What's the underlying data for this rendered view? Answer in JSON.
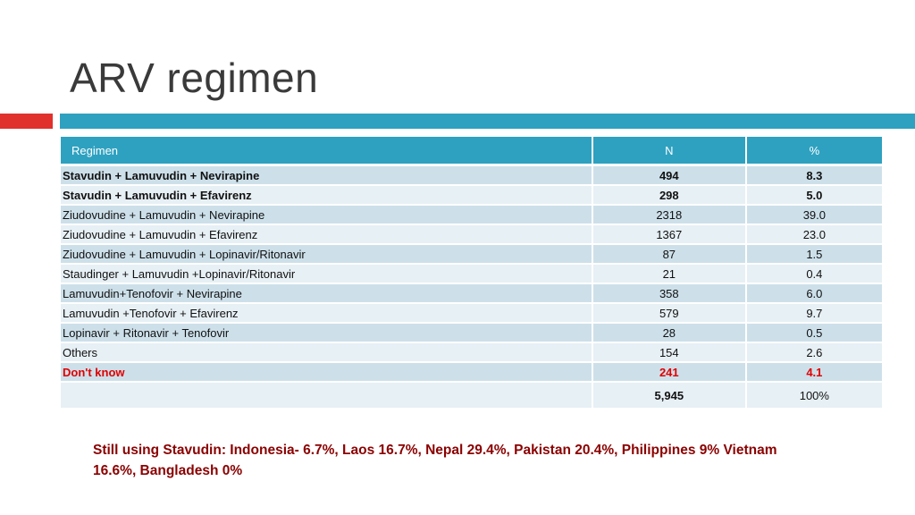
{
  "slide": {
    "title": "ARV regimen"
  },
  "table": {
    "headers": [
      "Regimen",
      "N",
      "%"
    ],
    "rows": [
      [
        "Stavudin + Lamuvudin + Nevirapine",
        "494",
        "8.3"
      ],
      [
        "Stavudin + Lamuvudin + Efavirenz",
        "298",
        "5.0"
      ],
      [
        "Ziudovudine + Lamuvudin + Nevirapine",
        "2318",
        "39.0"
      ],
      [
        "Ziudovudine + Lamuvudin + Efavirenz",
        "1367",
        "23.0"
      ],
      [
        "Ziudovudine + Lamuvudin + Lopinavir/Ritonavir",
        "87",
        "1.5"
      ],
      [
        "Staudinger + Lamuvudin +Lopinavir/Ritonavir",
        "21",
        "0.4"
      ],
      [
        "Lamuvudin+Tenofovir + Nevirapine",
        "358",
        "6.0"
      ],
      [
        "Lamuvudin +Tenofovir + Efavirenz",
        "579",
        "9.7"
      ],
      [
        "Lopinavir + Ritonavir + Tenofovir",
        "28",
        "0.5"
      ],
      [
        "Others",
        "154",
        "2.6"
      ],
      [
        "Don't know",
        "241",
        "4.1"
      ]
    ],
    "total": {
      "label": "",
      "n": "5,945",
      "pct": "100%"
    }
  },
  "note": "Still using Stavudin: Indonesia- 6.7%, Laos 16.7%, Nepal 29.4%, Pakistan 20.4%, Philippines 9% Vietnam 16.6%, Bangladesh 0%",
  "colors": {
    "accent_teal": "#2ea1c0",
    "accent_red": "#e0312d",
    "row_dark": "#cde0ea",
    "row_light": "#e7f0f5",
    "highlight_red": "#e00000",
    "note_color": "#8b0000"
  }
}
